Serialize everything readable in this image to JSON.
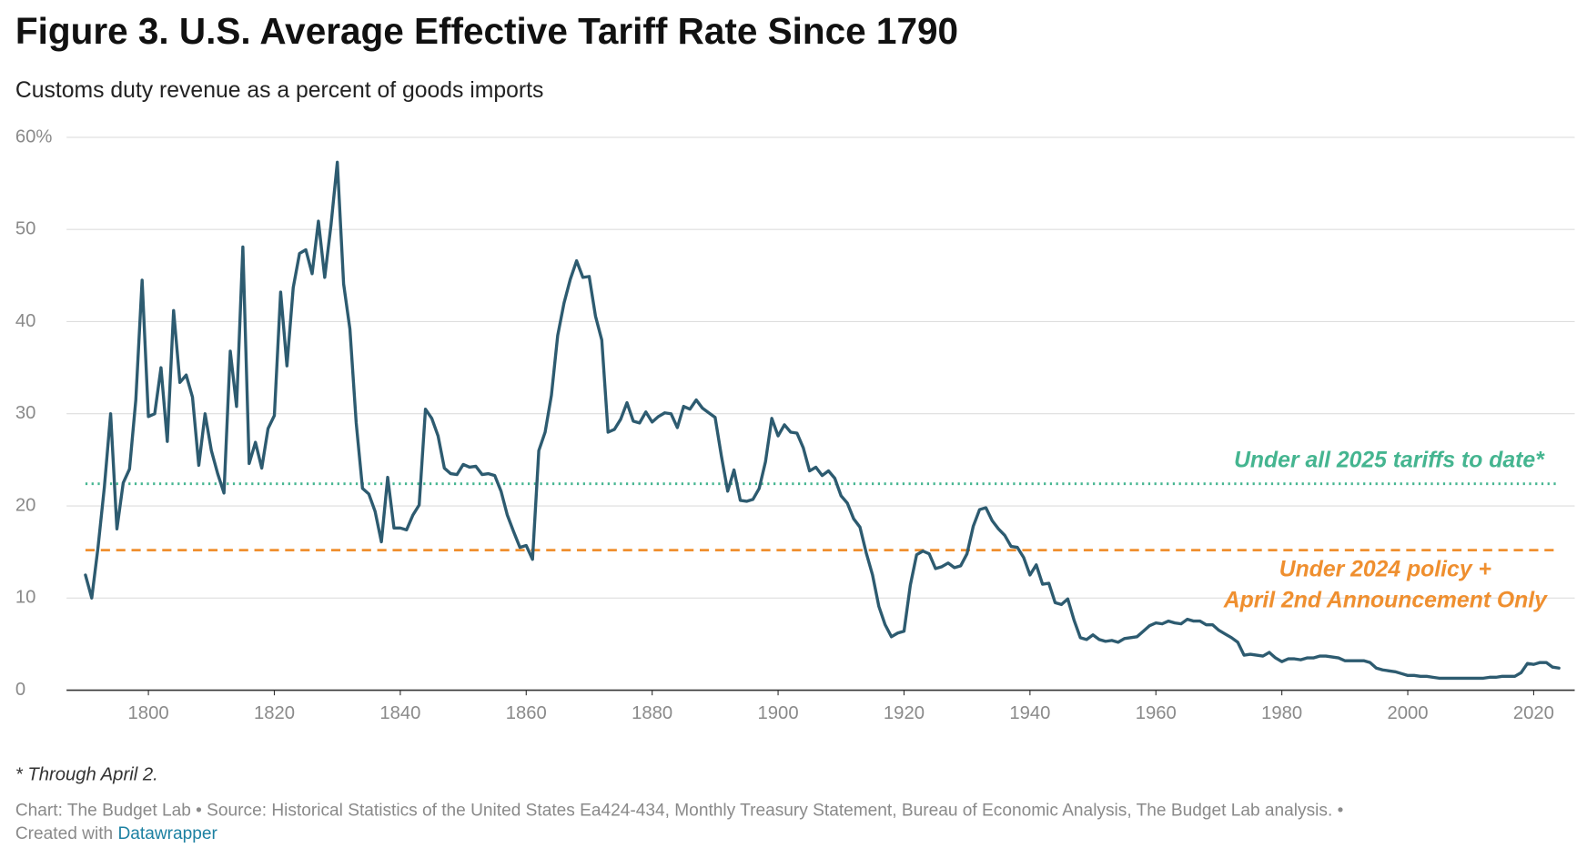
{
  "chart_data": {
    "type": "line",
    "title": "Figure 3. U.S. Average Effective Tariff Rate Since 1790",
    "subtitle": "Customs duty revenue as a percent of goods imports",
    "color": "#2d5b70",
    "x": [
      1790,
      1791,
      1792,
      1793,
      1794,
      1795,
      1796,
      1797,
      1798,
      1799,
      1800,
      1801,
      1802,
      1803,
      1804,
      1805,
      1806,
      1807,
      1808,
      1809,
      1810,
      1811,
      1812,
      1813,
      1814,
      1815,
      1816,
      1817,
      1818,
      1819,
      1820,
      1821,
      1822,
      1823,
      1824,
      1825,
      1826,
      1827,
      1828,
      1829,
      1830,
      1831,
      1832,
      1833,
      1834,
      1835,
      1836,
      1837,
      1838,
      1839,
      1840,
      1841,
      1842,
      1843,
      1844,
      1845,
      1846,
      1847,
      1848,
      1849,
      1850,
      1851,
      1852,
      1853,
      1854,
      1855,
      1856,
      1857,
      1858,
      1859,
      1860,
      1861,
      1862,
      1863,
      1864,
      1865,
      1866,
      1867,
      1868,
      1869,
      1870,
      1871,
      1872,
      1873,
      1874,
      1875,
      1876,
      1877,
      1878,
      1879,
      1880,
      1881,
      1882,
      1883,
      1884,
      1885,
      1886,
      1887,
      1888,
      1889,
      1890,
      1891,
      1892,
      1893,
      1894,
      1895,
      1896,
      1897,
      1898,
      1899,
      1900,
      1901,
      1902,
      1903,
      1904,
      1905,
      1906,
      1907,
      1908,
      1909,
      1910,
      1911,
      1912,
      1913,
      1914,
      1915,
      1916,
      1917,
      1918,
      1919,
      1920,
      1921,
      1922,
      1923,
      1924,
      1925,
      1926,
      1927,
      1928,
      1929,
      1930,
      1931,
      1932,
      1933,
      1934,
      1935,
      1936,
      1937,
      1938,
      1939,
      1940,
      1941,
      1942,
      1943,
      1944,
      1945,
      1946,
      1947,
      1948,
      1949,
      1950,
      1951,
      1952,
      1953,
      1954,
      1955,
      1956,
      1957,
      1958,
      1959,
      1960,
      1961,
      1962,
      1963,
      1964,
      1965,
      1966,
      1967,
      1968,
      1969,
      1970,
      1971,
      1972,
      1973,
      1974,
      1975,
      1976,
      1977,
      1978,
      1979,
      1980,
      1981,
      1982,
      1983,
      1984,
      1985,
      1986,
      1987,
      1988,
      1989,
      1990,
      1991,
      1992,
      1993,
      1994,
      1995,
      1996,
      1997,
      1998,
      1999,
      2000,
      2001,
      2002,
      2003,
      2004,
      2005,
      2006,
      2007,
      2008,
      2009,
      2010,
      2011,
      2012,
      2013,
      2014,
      2015,
      2016,
      2017,
      2018,
      2019,
      2020,
      2021,
      2022,
      2023,
      2024
    ],
    "values": [
      12.5,
      10,
      15.5,
      22,
      30,
      17.5,
      22.5,
      24,
      31.5,
      44.5,
      29.7,
      30,
      35,
      27,
      41.2,
      33.4,
      34.2,
      31.8,
      24.4,
      30,
      26,
      23.5,
      21.4,
      36.8,
      30.8,
      48.1,
      24.6,
      26.9,
      24.1,
      28.4,
      29.8,
      43.2,
      35.2,
      43.7,
      47.4,
      47.8,
      45.2,
      50.9,
      44.8,
      50.5,
      57.3,
      44.1,
      39.2,
      29,
      21.9,
      21.3,
      19.4,
      16.1,
      23.1,
      17.6,
      17.6,
      17.4,
      19,
      20.1,
      30.5,
      29.5,
      27.6,
      24.1,
      23.5,
      23.4,
      24.5,
      24.2,
      24.3,
      23.4,
      23.5,
      23.3,
      21.6,
      19,
      17.2,
      15.5,
      15.7,
      14.2,
      26,
      28,
      32,
      38.5,
      42,
      44.6,
      46.6,
      44.8,
      44.9,
      40.6,
      38,
      28,
      28.3,
      29.4,
      31.2,
      29.2,
      29,
      30.2,
      29.1,
      29.7,
      30.1,
      30,
      28.5,
      30.8,
      30.5,
      31.5,
      30.6,
      30.1,
      29.6,
      25.4,
      21.6,
      23.9,
      20.6,
      20.5,
      20.7,
      21.9,
      24.8,
      29.5,
      27.6,
      28.8,
      28,
      27.9,
      26.3,
      23.8,
      24.2,
      23.3,
      23.8,
      23,
      21.1,
      20.3,
      18.6,
      17.7,
      14.9,
      12.5,
      9.1,
      7.1,
      5.8,
      6.2,
      6.4,
      11.4,
      14.7,
      15.1,
      14.8,
      13.2,
      13.4,
      13.8,
      13.3,
      13.5,
      14.8,
      17.8,
      19.6,
      19.8,
      18.4,
      17.5,
      16.8,
      15.6,
      15.5,
      14.4,
      12.5,
      13.6,
      11.5,
      11.6,
      9.5,
      9.3,
      9.9,
      7.6,
      5.7,
      5.5,
      6,
      5.5,
      5.3,
      5.4,
      5.2,
      5.6,
      5.7,
      5.8,
      6.4,
      7,
      7.3,
      7.2,
      7.5,
      7.3,
      7.2,
      7.7,
      7.5,
      7.5,
      7.1,
      7.1,
      6.5,
      6.1,
      5.7,
      5.2,
      3.8,
      3.9,
      3.8,
      3.7,
      4.1,
      3.5,
      3.1,
      3.4,
      3.4,
      3.3,
      3.5,
      3.5,
      3.7,
      3.7,
      3.6,
      3.5,
      3.2,
      3.2,
      3.2,
      3.2,
      3,
      2.4,
      2.2,
      2.1,
      2,
      1.8,
      1.6,
      1.6,
      1.5,
      1.5,
      1.4,
      1.3,
      1.3,
      1.3,
      1.3,
      1.3,
      1.3,
      1.3,
      1.3,
      1.4,
      1.4,
      1.5,
      1.5,
      1.5,
      1.9,
      2.9,
      2.8,
      3,
      3,
      2.5,
      2.4
    ],
    "xlim": [
      1787,
      2027
    ],
    "xticks": [
      1800,
      1820,
      1840,
      1860,
      1880,
      1900,
      1920,
      1940,
      1960,
      1980,
      2000,
      2020
    ],
    "ylim": [
      0,
      60
    ],
    "yticks": [
      0,
      10,
      20,
      30,
      40,
      50,
      {
        "value": 60,
        "label": "60%"
      }
    ],
    "grid": true,
    "reference_lines": [
      {
        "value": 22.4,
        "color": "#45b590",
        "style": "dotted",
        "label": [
          "Under all 2025 tariffs to date*"
        ]
      },
      {
        "value": 15.2,
        "color": "#ef8f2f",
        "style": "dashed",
        "label": [
          "Under 2024 policy +",
          "April 2nd Announcement Only"
        ]
      }
    ],
    "note": "* Through April 2.",
    "source": "Chart: The Budget Lab • Source: Historical Statistics of the United States Ea424-434, Monthly Treasury Statement, Bureau of Economic Analysis, The Budget Lab analysis. •",
    "credit": "Created with",
    "credit_link": "Datawrapper"
  }
}
